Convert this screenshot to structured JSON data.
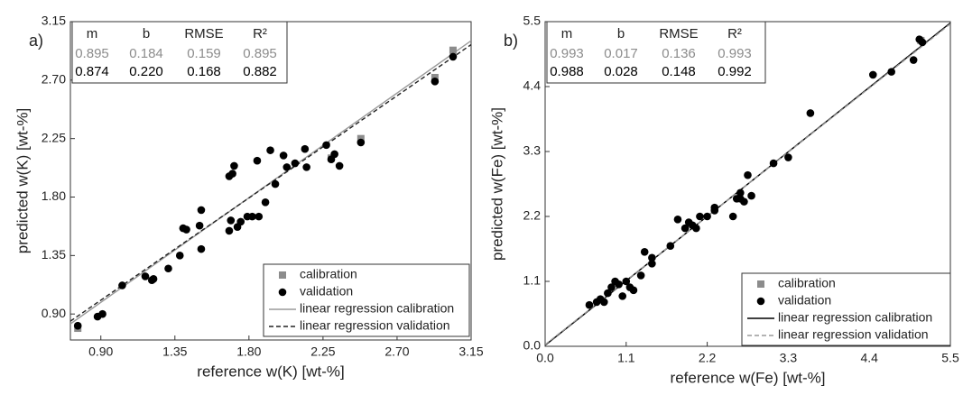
{
  "chart_data": [
    {
      "type": "scatter",
      "panel_label": "a)",
      "x_label": "reference w(K) [wt-%]",
      "y_label": "predicted w(K) [wt-%]",
      "xlim": [
        0.715,
        3.15
      ],
      "ylim": [
        0.7,
        3.15
      ],
      "xticks": [
        {
          "value": 0.9,
          "label": "0.90"
        },
        1.35,
        {
          "value": 1.8,
          "label": "1.80"
        },
        2.25,
        {
          "value": 2.7,
          "label": "2.70"
        },
        3.15
      ],
      "yticks": [
        {
          "value": 0.9,
          "label": "0.90"
        },
        1.35,
        {
          "value": 1.8,
          "label": "1.80"
        },
        2.25,
        {
          "value": 2.7,
          "label": "2.70"
        },
        3.15
      ],
      "series": [
        {
          "name": "calibration",
          "color": "#8c8c8c",
          "marker": "square",
          "x": [
            0.76,
            2.3,
            2.48,
            2.93,
            3.04
          ],
          "values": [
            0.79,
            2.1,
            2.25,
            2.72,
            2.93
          ]
        },
        {
          "name": "validation",
          "color": "#000000",
          "marker": "circle",
          "x": [
            0.76,
            0.88,
            0.91,
            1.03,
            1.17,
            1.21,
            1.22,
            1.31,
            1.38,
            1.4,
            1.42,
            1.5,
            1.51,
            1.51,
            1.68,
            1.68,
            1.69,
            1.7,
            1.71,
            1.73,
            1.75,
            1.79,
            1.82,
            1.85,
            1.86,
            1.9,
            1.93,
            1.96,
            2.01,
            2.03,
            2.08,
            2.14,
            2.15,
            2.27,
            2.3,
            2.32,
            2.35,
            2.48,
            2.93,
            3.04
          ],
          "values": [
            0.81,
            0.88,
            0.9,
            1.12,
            1.19,
            1.16,
            1.17,
            1.25,
            1.35,
            1.56,
            1.55,
            1.58,
            1.7,
            1.4,
            1.54,
            1.96,
            1.62,
            1.98,
            2.04,
            1.57,
            1.61,
            1.65,
            1.65,
            2.08,
            1.65,
            1.76,
            2.16,
            1.9,
            2.12,
            2.03,
            2.06,
            2.17,
            2.03,
            2.2,
            2.09,
            2.13,
            2.04,
            2.22,
            2.69,
            2.88
          ]
        }
      ],
      "regression_lines": [
        {
          "name": "linear regression calibration",
          "color": "#9a9a9a",
          "dash": false
        },
        {
          "name": "linear regression validation",
          "color": "#222222",
          "dash": true
        }
      ],
      "stats": {
        "headers": [
          "m",
          "b",
          "RMSE",
          "R²"
        ],
        "rows": [
          [
            0.895,
            0.184,
            0.159,
            0.895
          ],
          [
            0.874,
            {
              "value": 0.22,
              "label": "0.220"
            },
            0.168,
            0.882
          ]
        ]
      }
    },
    {
      "type": "scatter",
      "panel_label": "b)",
      "x_label": "reference w(Fe) [wt-%]",
      "y_label": "predicted w(Fe) [wt-%]",
      "xlim": [
        0,
        5.5
      ],
      "ylim": [
        0,
        5.5
      ],
      "xticks": [
        {
          "value": 0,
          "label": "0.0"
        },
        1.1,
        2.2,
        3.3,
        4.4,
        5.5
      ],
      "yticks": [
        {
          "value": 0,
          "label": "0.0"
        },
        1.1,
        2.2,
        3.3,
        4.4,
        5.5
      ],
      "series": [
        {
          "name": "calibration",
          "color": "#8c8c8c",
          "marker": "square",
          "x": [
            5.1
          ],
          "values": [
            5.18
          ]
        },
        {
          "name": "validation",
          "color": "#000000",
          "marker": "circle",
          "x": [
            0.6,
            0.7,
            0.75,
            0.8,
            0.85,
            0.9,
            0.95,
            1.0,
            1.05,
            1.1,
            1.15,
            1.2,
            1.3,
            1.35,
            1.45,
            1.45,
            1.7,
            1.8,
            1.9,
            1.95,
            2.0,
            2.05,
            2.1,
            2.2,
            2.3,
            2.3,
            2.55,
            2.6,
            2.65,
            2.65,
            2.7,
            2.75,
            2.8,
            3.1,
            3.3,
            3.6,
            4.45,
            4.7,
            5.0,
            5.08,
            5.12
          ],
          "values": [
            0.7,
            0.75,
            0.8,
            0.75,
            0.9,
            1.0,
            1.1,
            1.05,
            0.85,
            1.1,
            1.0,
            0.95,
            1.2,
            1.6,
            1.4,
            1.5,
            1.7,
            2.15,
            2.0,
            2.1,
            2.05,
            2.0,
            2.2,
            2.2,
            2.35,
            2.3,
            2.2,
            2.5,
            2.6,
            2.5,
            2.45,
            2.9,
            2.55,
            3.1,
            3.2,
            3.95,
            4.6,
            4.65,
            4.85,
            5.2,
            5.15
          ]
        }
      ],
      "regression_lines": [
        {
          "name": "linear regression calibration",
          "color": "#000000",
          "dash": false
        },
        {
          "name": "linear regression validation",
          "color": "#9a9a9a",
          "dash": true
        }
      ],
      "stats": {
        "headers": [
          "m",
          "b",
          "RMSE",
          "R²"
        ],
        "rows": [
          [
            0.993,
            0.017,
            0.136,
            0.993
          ],
          [
            0.988,
            0.028,
            0.148,
            0.992
          ]
        ]
      }
    }
  ]
}
